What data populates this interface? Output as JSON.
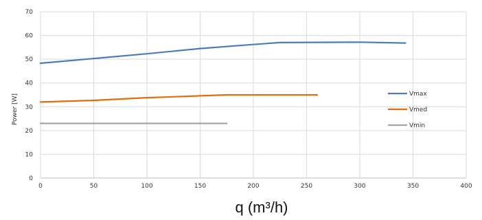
{
  "chart_data": {
    "type": "line",
    "xlabel": "q (m³/h)",
    "ylabel": "Power [W]",
    "xlim": [
      0,
      400
    ],
    "ylim": [
      0,
      70
    ],
    "x_ticks": [
      0,
      50,
      100,
      150,
      200,
      250,
      300,
      350,
      400
    ],
    "y_ticks": [
      0,
      10,
      20,
      30,
      40,
      50,
      60,
      70
    ],
    "grid": true,
    "legend_position": "right",
    "series": [
      {
        "name": "Vmax",
        "color": "#4a7ebb",
        "x": [
          0,
          50,
          100,
          150,
          200,
          225,
          300,
          343
        ],
        "y": [
          48.3,
          50.3,
          52.3,
          54.5,
          56.2,
          57.0,
          57.2,
          56.8
        ]
      },
      {
        "name": "Vmed",
        "color": "#e46c0a",
        "x": [
          0,
          50,
          100,
          150,
          175,
          200,
          260
        ],
        "y": [
          32.0,
          32.7,
          33.8,
          34.6,
          35.0,
          35.0,
          35.0
        ]
      },
      {
        "name": "Vmin",
        "color": "#a5a5a5",
        "x": [
          0,
          175
        ],
        "y": [
          23.0,
          23.0
        ]
      }
    ]
  }
}
